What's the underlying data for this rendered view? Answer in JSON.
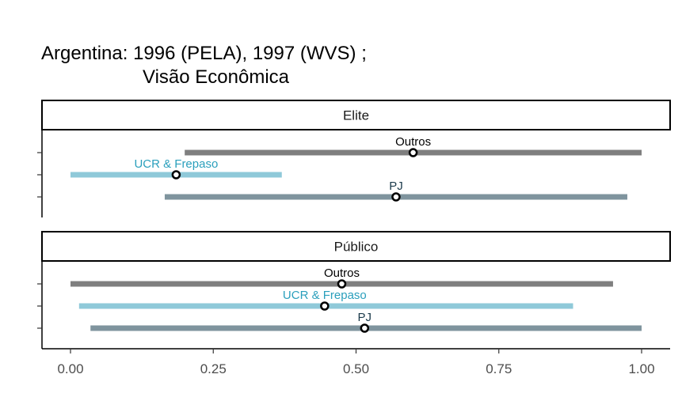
{
  "title": {
    "line1": "Argentina: 1996 (PELA), 1997 (WVS) ;",
    "line2": "Visão Econômica"
  },
  "colors": {
    "Outros": "#7f7f7f",
    "UCR & Frepaso": "#8fc9d9",
    "PJ": "#7f949e",
    "label_Outros": "#000000",
    "label_UCR & Frepaso": "#2a9fbc",
    "label_PJ": "#1b3a4b"
  },
  "chart_data": {
    "type": "dot-interval",
    "xlim": [
      0,
      1
    ],
    "x_ticks": [
      0,
      0.25,
      0.5,
      0.75,
      1
    ],
    "x_tick_labels": [
      "0.00",
      "0.25",
      "0.50",
      "0.75",
      "1.00"
    ],
    "panels": [
      {
        "name": "Elite",
        "rows": [
          {
            "label": "Outros",
            "point": 0.6,
            "low": 0.2,
            "high": 1.0
          },
          {
            "label": "UCR & Frepaso",
            "point": 0.185,
            "low": 0.0,
            "high": 0.37
          },
          {
            "label": "PJ",
            "point": 0.57,
            "low": 0.165,
            "high": 0.975
          }
        ]
      },
      {
        "name": "Público",
        "rows": [
          {
            "label": "Outros",
            "point": 0.475,
            "low": 0.0,
            "high": 0.95
          },
          {
            "label": "UCR & Frepaso",
            "point": 0.445,
            "low": 0.015,
            "high": 0.88
          },
          {
            "label": "PJ",
            "point": 0.515,
            "low": 0.035,
            "high": 1.0
          }
        ]
      }
    ]
  }
}
